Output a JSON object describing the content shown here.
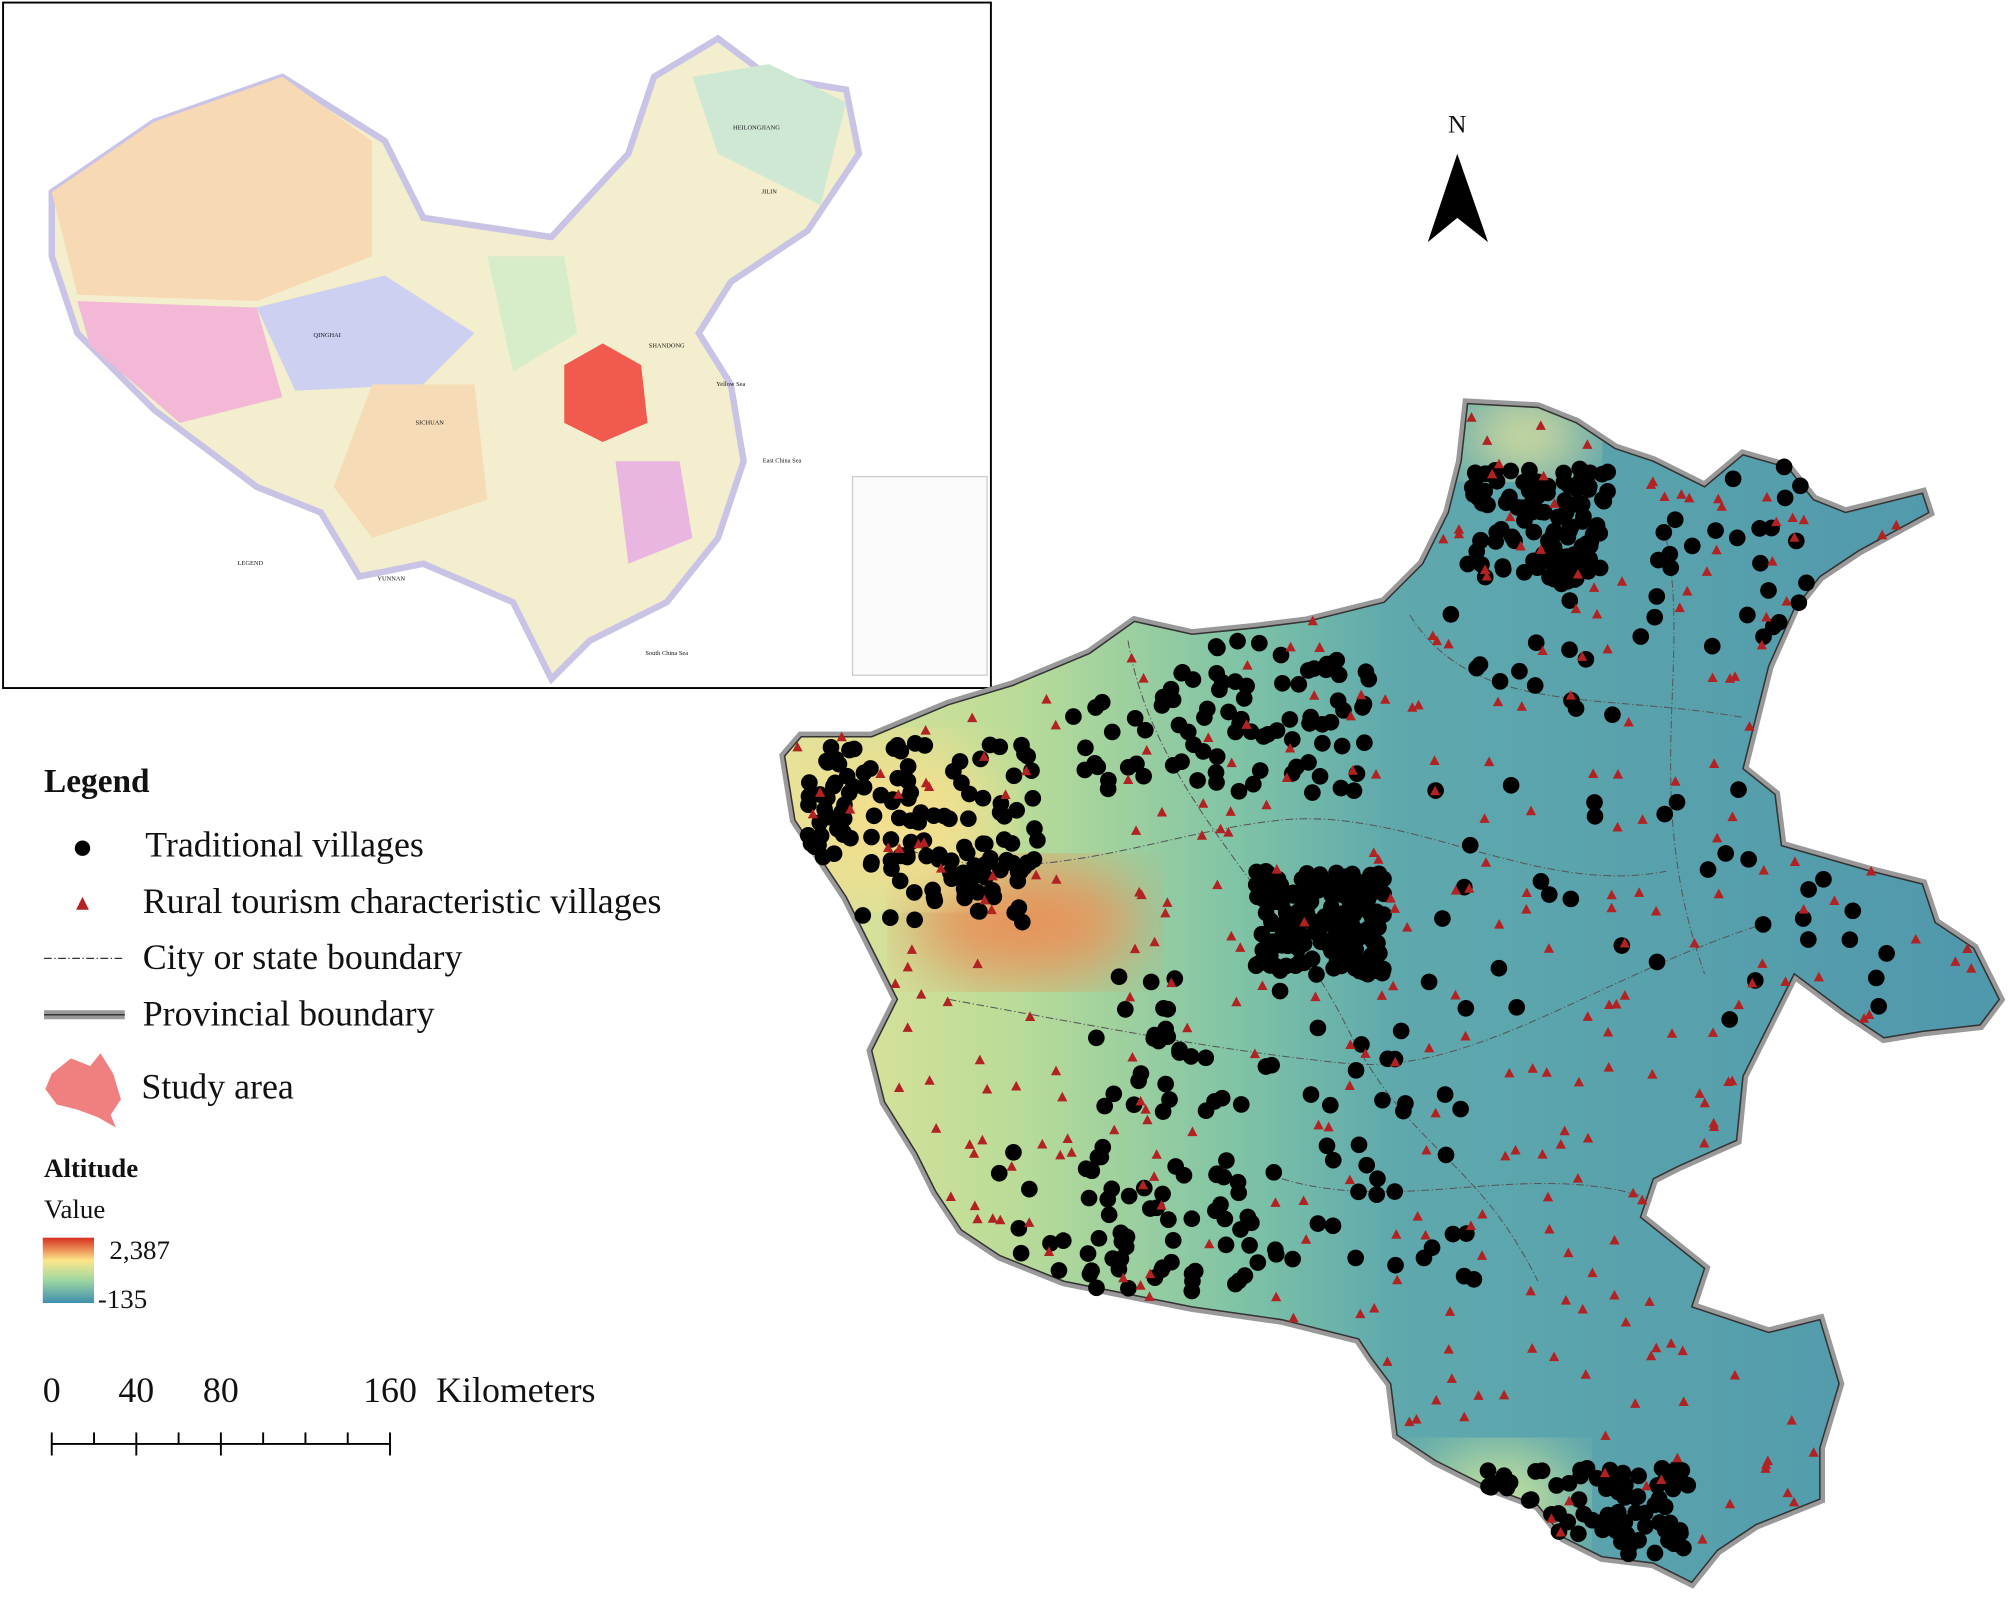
{
  "north": "N",
  "inset": {
    "labels": [
      "QINGHAI",
      "SICHUAN",
      "YUNNAN",
      "HEILONGJIANG",
      "JILIN",
      "SHANDONG",
      "Yellow Sea",
      "East China Sea",
      "South China Sea",
      "LEGEND"
    ]
  },
  "legend": {
    "title": "Legend",
    "items": [
      "Traditional villages",
      "Rural tourism characteristic villages",
      "City or state boundary",
      "Provincial boundary",
      "Study area"
    ],
    "altitude": {
      "title": "Altitude",
      "subtitle": "Value",
      "high": "2,387",
      "low": "-135"
    }
  },
  "scale_bar": {
    "ticks": [
      "0",
      "40",
      "80",
      "160"
    ],
    "unit": "Kilometers"
  }
}
